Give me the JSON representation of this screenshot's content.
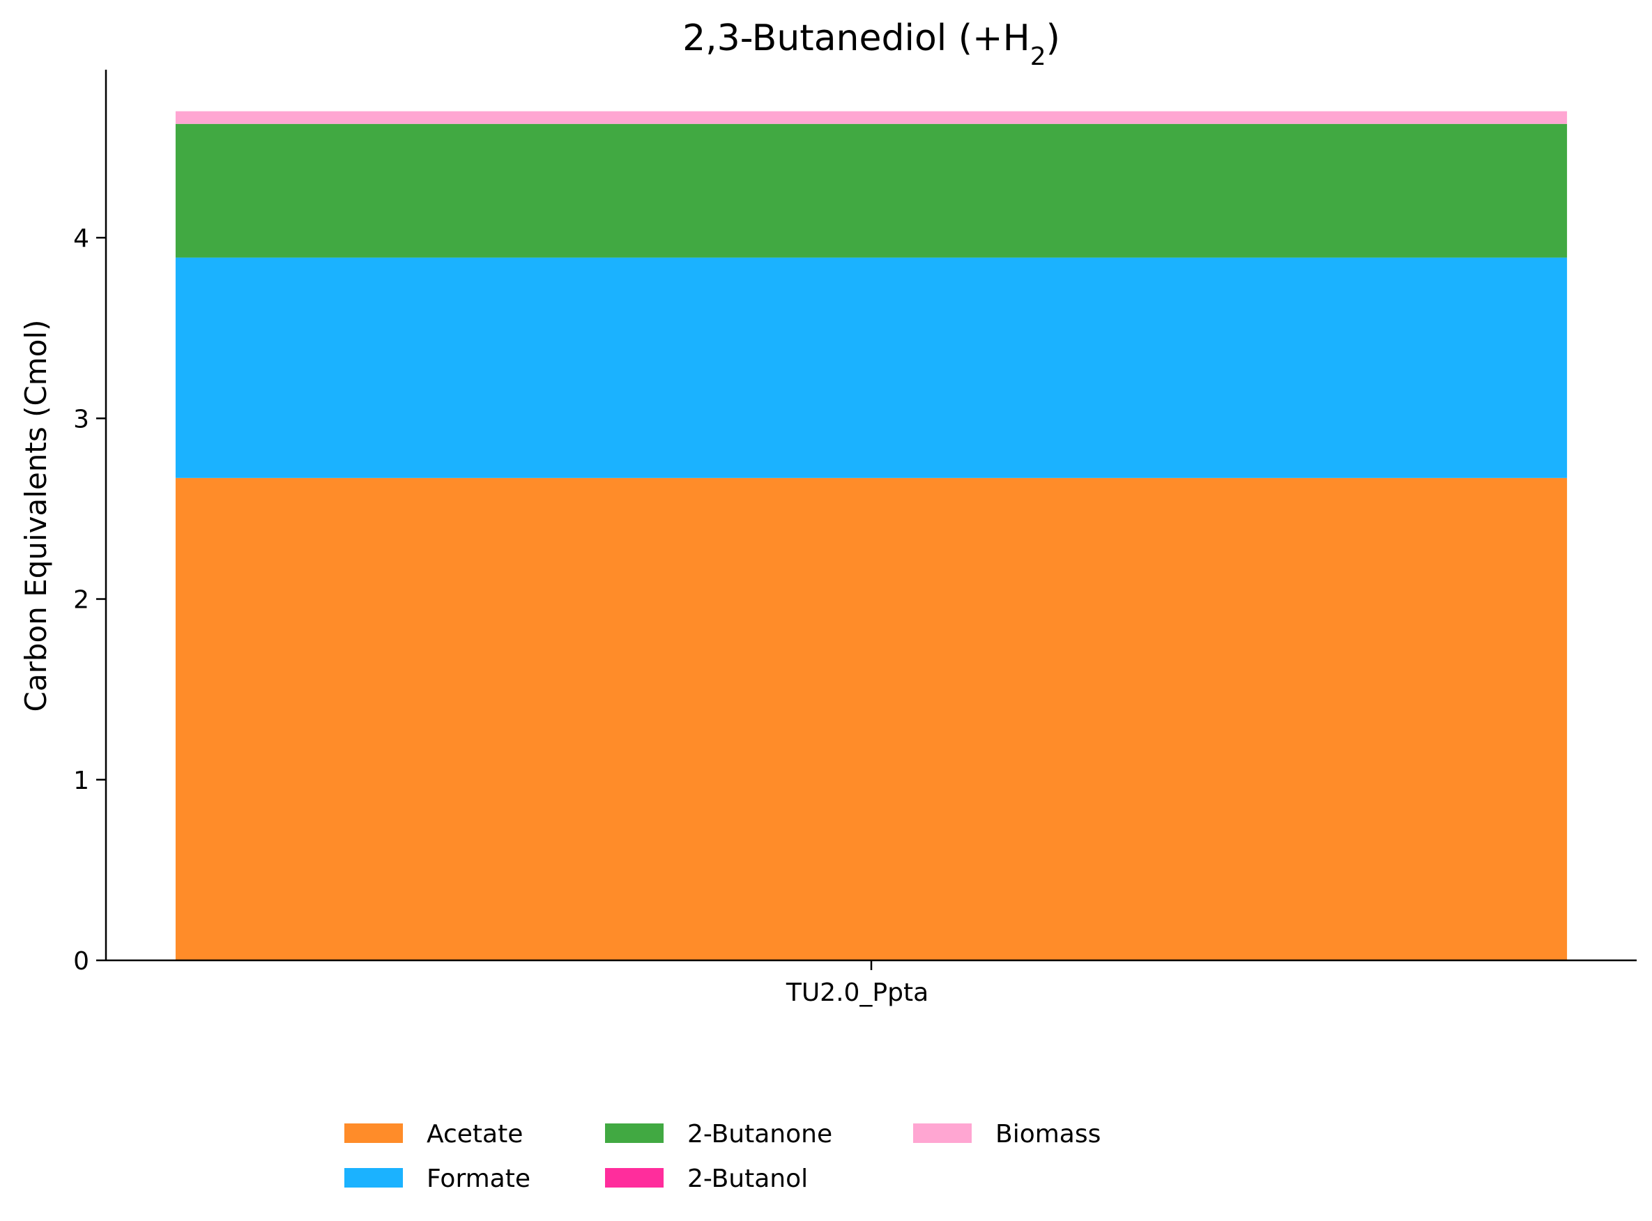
{
  "chart_data": {
    "type": "bar",
    "stacked": true,
    "title": "2,3-Butanediol (+H",
    "title_subscript": "2",
    "title_suffix": ")",
    "xlabel": "",
    "ylabel": "Carbon Equivalents (Cmol)",
    "categories": [
      "TU2.0_Ppta"
    ],
    "ylim": [
      0,
      4.93
    ],
    "yticks": [
      0,
      1,
      2,
      3,
      4
    ],
    "grid": false,
    "legend_position": "bottom-center",
    "series": [
      {
        "name": "Acetate",
        "values": [
          2.67
        ],
        "color": "#ff8c29"
      },
      {
        "name": "Formate",
        "values": [
          1.22
        ],
        "color": "#1bb2ff"
      },
      {
        "name": "2-Butanone",
        "values": [
          0.74
        ],
        "color": "#41a942"
      },
      {
        "name": "2-Butanol",
        "values": [
          0.0
        ],
        "color": "#ff2d9c"
      },
      {
        "name": "Biomass",
        "values": [
          0.07
        ],
        "color": "#ffa6d2"
      }
    ]
  }
}
